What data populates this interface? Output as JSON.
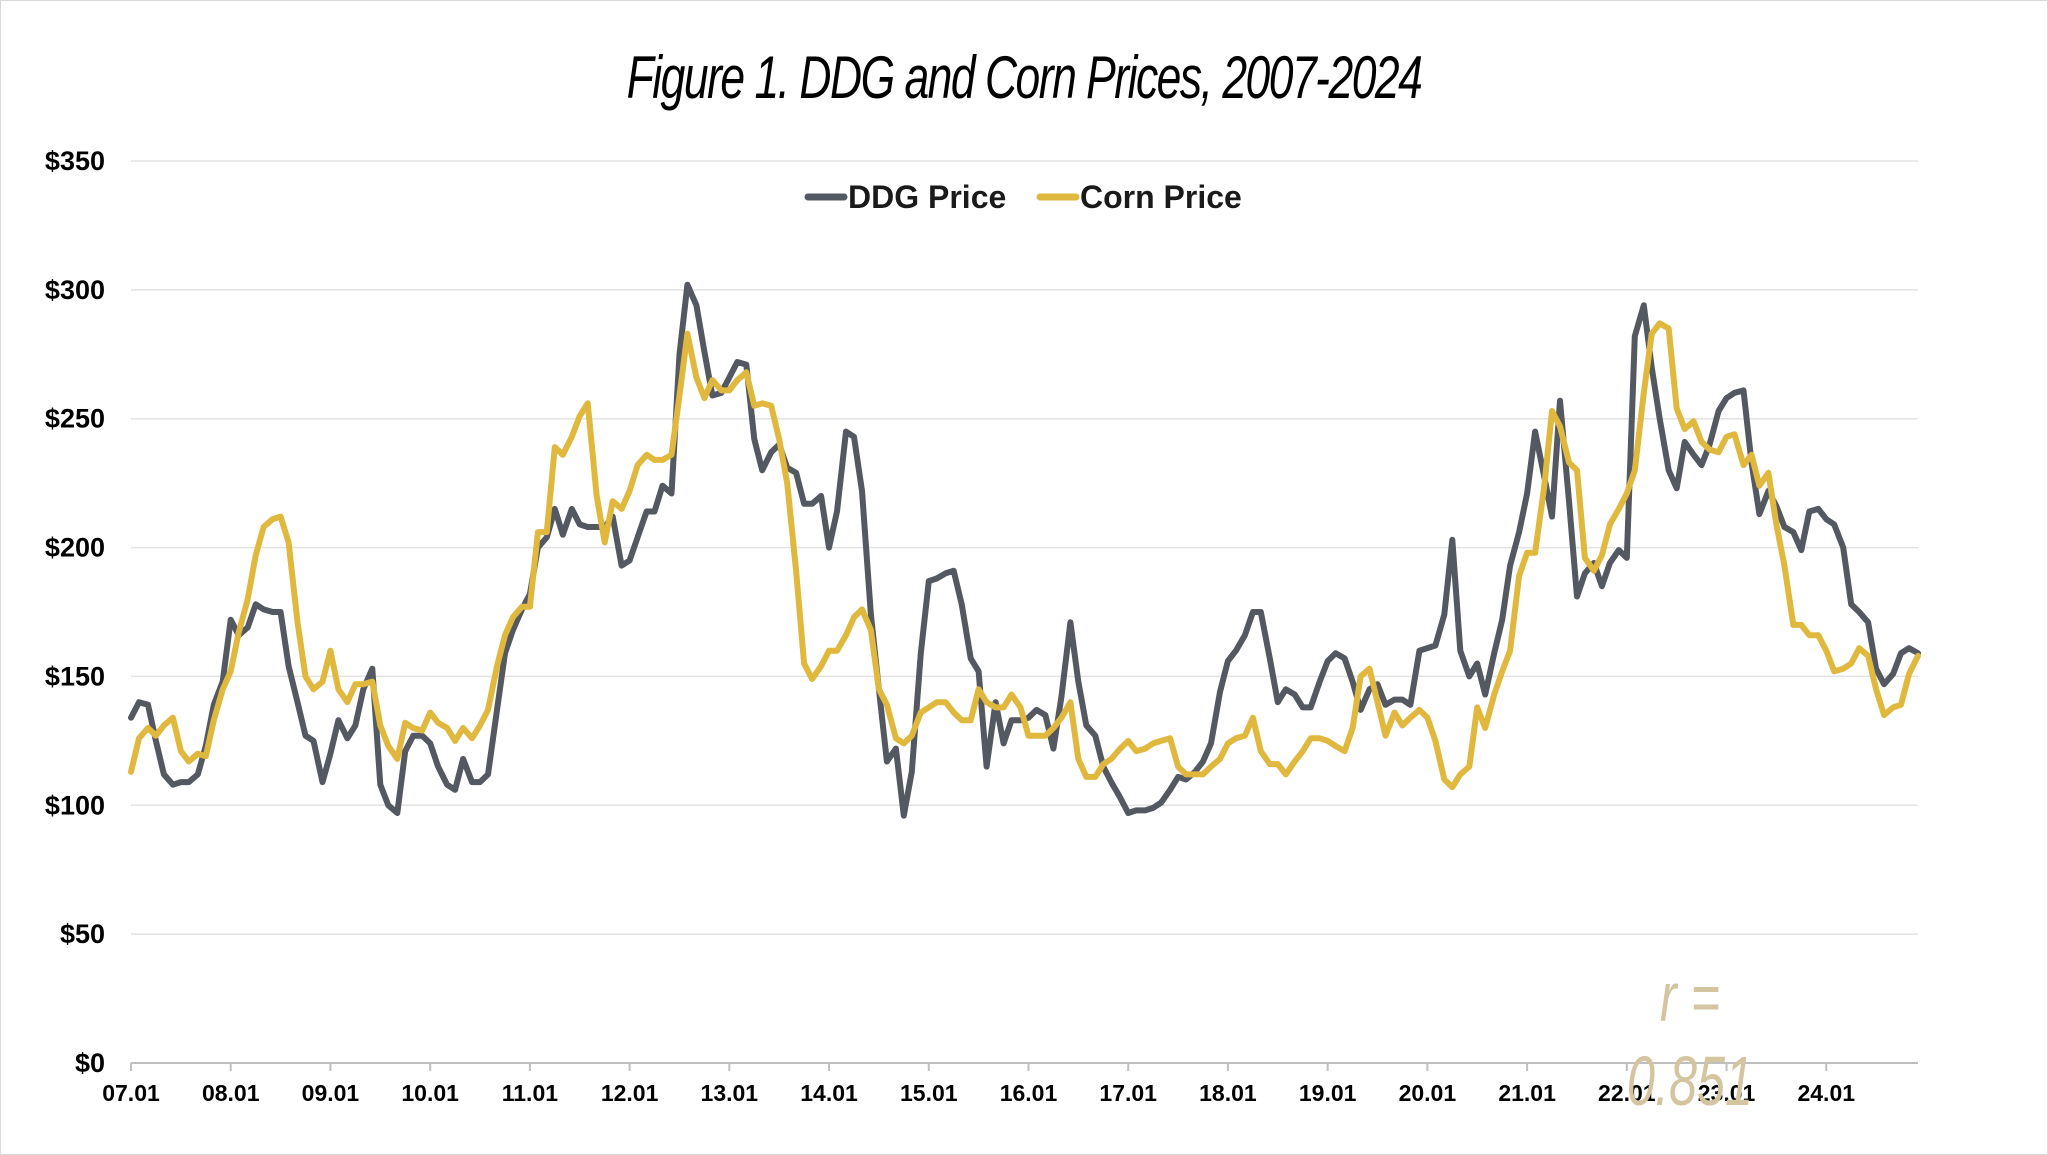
{
  "title": "Figure 1. DDG and Corn Prices, 2007-2024",
  "annotation": "r = 0.851",
  "colors": {
    "ddg": "#545860",
    "corn": "#e0b83e",
    "grid": "#e3e3e3",
    "annotation": "#d4c4a0"
  },
  "chart_data": {
    "type": "line",
    "title": "Figure 1. DDG and Corn Prices, 2007-2024",
    "xlabel": "",
    "ylabel": "",
    "ylim": [
      0,
      350
    ],
    "yticks": [
      "$0",
      "$50",
      "$100",
      "$150",
      "$200",
      "$250",
      "$300",
      "$350"
    ],
    "xticks": [
      "07.01",
      "08.01",
      "09.01",
      "10.01",
      "11.01",
      "12.01",
      "13.01",
      "14.01",
      "15.01",
      "16.01",
      "17.01",
      "18.01",
      "19.01",
      "20.01",
      "21.01",
      "22.01",
      "23.01",
      "24.01"
    ],
    "grid": "horizontal",
    "legend": "top-center",
    "series": [
      {
        "name": "DDG Price",
        "x": [
          0.0,
          0.08,
          0.17,
          0.25,
          0.33,
          0.42,
          0.5,
          0.58,
          0.67,
          0.75,
          0.83,
          0.92,
          1.0,
          1.08,
          1.17,
          1.25,
          1.33,
          1.42,
          1.5,
          1.58,
          1.67,
          1.75,
          1.83,
          1.92,
          2.0,
          2.08,
          2.17,
          2.25,
          2.33,
          2.42,
          2.5,
          2.58,
          2.67,
          2.75,
          2.83,
          2.92,
          3.0,
          3.08,
          3.17,
          3.25,
          3.33,
          3.42,
          3.5,
          3.58,
          3.67,
          3.75,
          3.83,
          3.92,
          4.0,
          4.08,
          4.17,
          4.25,
          4.33,
          4.42,
          4.5,
          4.58,
          4.67,
          4.75,
          4.83,
          4.92,
          5.0,
          5.08,
          5.17,
          5.25,
          5.33,
          5.42,
          5.5,
          5.58,
          5.67,
          5.75,
          5.83,
          5.92,
          6.0,
          6.08,
          6.17,
          6.25,
          6.33,
          6.42,
          6.5,
          6.58,
          6.67,
          6.75,
          6.83,
          6.92,
          7.0,
          7.08,
          7.17,
          7.25,
          7.33,
          7.42,
          7.5,
          7.58,
          7.67,
          7.75,
          7.83,
          7.92,
          8.0,
          8.08,
          8.17,
          8.25,
          8.33,
          8.42,
          8.5,
          8.58,
          8.67,
          8.75,
          8.83,
          8.92,
          9.0,
          9.08,
          9.17,
          9.25,
          9.33,
          9.42,
          9.5,
          9.58,
          9.67,
          9.75,
          9.83,
          9.92,
          10.0,
          10.08,
          10.17,
          10.25,
          10.33,
          10.42,
          10.5,
          10.58,
          10.67,
          10.75,
          10.83,
          10.92,
          11.0,
          11.08,
          11.17,
          11.25,
          11.33,
          11.42,
          11.5,
          11.58,
          11.67,
          11.75,
          11.83,
          11.92,
          12.0,
          12.08,
          12.17,
          12.25,
          12.33,
          12.42,
          12.5,
          12.58,
          12.67,
          12.75,
          12.83,
          12.92,
          13.0,
          13.08,
          13.17,
          13.25,
          13.33,
          13.42,
          13.5,
          13.58,
          13.67,
          13.75,
          13.83,
          13.92,
          14.0,
          14.08,
          14.17,
          14.25,
          14.33,
          14.42,
          14.5,
          14.58,
          14.67,
          14.75,
          14.83,
          14.92,
          15.0,
          15.08,
          15.17,
          15.25,
          15.33,
          15.42,
          15.5,
          15.58,
          15.67,
          15.75,
          15.83,
          15.92,
          16.0,
          16.08,
          16.17,
          16.25,
          16.33,
          16.42,
          16.5,
          16.58,
          16.67,
          16.75,
          16.83,
          16.92,
          17.0,
          17.08,
          17.17,
          17.25,
          17.33,
          17.42,
          17.5,
          17.58,
          17.67,
          17.75,
          17.83,
          17.92
        ],
        "values": [
          134,
          140,
          139,
          125,
          112,
          108,
          109,
          109,
          112,
          123,
          139,
          148,
          172,
          166,
          169,
          178,
          176,
          175,
          175,
          154,
          140,
          127,
          125,
          109,
          120,
          133,
          126,
          131,
          145,
          153,
          108,
          100,
          97,
          121,
          127,
          127,
          124,
          115,
          108,
          106,
          118,
          109,
          109,
          112,
          137,
          159,
          168,
          176,
          182,
          200,
          204,
          215,
          205,
          215,
          209,
          208,
          208,
          208,
          212,
          193,
          195,
          204,
          214,
          214,
          224,
          221,
          275,
          302,
          294,
          276,
          259,
          260,
          266,
          272,
          271,
          242,
          230,
          237,
          240,
          231,
          229,
          217,
          217,
          220,
          200,
          214,
          245,
          243,
          222,
          174,
          145,
          117,
          122,
          96,
          113,
          159,
          187,
          188,
          190,
          191,
          178,
          157,
          152,
          115,
          140,
          124,
          133,
          133,
          134,
          137,
          135,
          122,
          142,
          171,
          148,
          131,
          127,
          115,
          109,
          103,
          97,
          98,
          98,
          99,
          101,
          106,
          111,
          110,
          113,
          117,
          124,
          144,
          156,
          160,
          166,
          175,
          175,
          157,
          140,
          145,
          143,
          138,
          138,
          148,
          156,
          159,
          157,
          148,
          137,
          145,
          147,
          139,
          141,
          141,
          139,
          160,
          161,
          162,
          174,
          203,
          160,
          150,
          155,
          143,
          159,
          172,
          193,
          206,
          221,
          245,
          228,
          212,
          257,
          218,
          181,
          190,
          194,
          185,
          194,
          199,
          196,
          282,
          294,
          270,
          250,
          230,
          223,
          241,
          236,
          232,
          240,
          253,
          258,
          260,
          261,
          233,
          213,
          222,
          216,
          208,
          206,
          199,
          214,
          215,
          211,
          209,
          200,
          178,
          175,
          171,
          153,
          147,
          151,
          159,
          161,
          159
        ]
      },
      {
        "name": "Corn Price",
        "x": [
          0.0,
          0.08,
          0.17,
          0.25,
          0.33,
          0.42,
          0.5,
          0.58,
          0.67,
          0.75,
          0.83,
          0.92,
          1.0,
          1.08,
          1.17,
          1.25,
          1.33,
          1.42,
          1.5,
          1.58,
          1.67,
          1.75,
          1.83,
          1.92,
          2.0,
          2.08,
          2.17,
          2.25,
          2.33,
          2.42,
          2.5,
          2.58,
          2.67,
          2.75,
          2.83,
          2.92,
          3.0,
          3.08,
          3.17,
          3.25,
          3.33,
          3.42,
          3.5,
          3.58,
          3.67,
          3.75,
          3.83,
          3.92,
          4.0,
          4.08,
          4.17,
          4.25,
          4.33,
          4.42,
          4.5,
          4.58,
          4.67,
          4.75,
          4.83,
          4.92,
          5.0,
          5.08,
          5.17,
          5.25,
          5.33,
          5.42,
          5.5,
          5.58,
          5.67,
          5.75,
          5.83,
          5.92,
          6.0,
          6.08,
          6.17,
          6.25,
          6.33,
          6.42,
          6.5,
          6.58,
          6.67,
          6.75,
          6.83,
          6.92,
          7.0,
          7.08,
          7.17,
          7.25,
          7.33,
          7.42,
          7.5,
          7.58,
          7.67,
          7.75,
          7.83,
          7.92,
          8.0,
          8.08,
          8.17,
          8.25,
          8.33,
          8.42,
          8.5,
          8.58,
          8.67,
          8.75,
          8.83,
          8.92,
          9.0,
          9.08,
          9.17,
          9.25,
          9.33,
          9.42,
          9.5,
          9.58,
          9.67,
          9.75,
          9.83,
          9.92,
          10.0,
          10.08,
          10.17,
          10.25,
          10.33,
          10.42,
          10.5,
          10.58,
          10.67,
          10.75,
          10.83,
          10.92,
          11.0,
          11.08,
          11.17,
          11.25,
          11.33,
          11.42,
          11.5,
          11.58,
          11.67,
          11.75,
          11.83,
          11.92,
          12.0,
          12.08,
          12.17,
          12.25,
          12.33,
          12.42,
          12.5,
          12.58,
          12.67,
          12.75,
          12.83,
          12.92,
          13.0,
          13.08,
          13.17,
          13.25,
          13.33,
          13.42,
          13.5,
          13.58,
          13.67,
          13.75,
          13.83,
          13.92,
          14.0,
          14.08,
          14.17,
          14.25,
          14.33,
          14.42,
          14.5,
          14.58,
          14.67,
          14.75,
          14.83,
          14.92,
          15.0,
          15.08,
          15.17,
          15.25,
          15.33,
          15.42,
          15.5,
          15.58,
          15.67,
          15.75,
          15.83,
          15.92,
          16.0,
          16.08,
          16.17,
          16.25,
          16.33,
          16.42,
          16.5,
          16.58,
          16.67,
          16.75,
          16.83,
          16.92,
          17.0,
          17.08,
          17.17,
          17.25,
          17.33,
          17.42,
          17.5,
          17.58,
          17.67,
          17.75,
          17.83,
          17.92
        ],
        "values": [
          113,
          126,
          130,
          127,
          131,
          134,
          121,
          117,
          120,
          119,
          133,
          145,
          152,
          167,
          180,
          197,
          208,
          211,
          212,
          202,
          171,
          150,
          145,
          148,
          160,
          145,
          140,
          147,
          147,
          148,
          131,
          123,
          118,
          132,
          130,
          129,
          136,
          132,
          130,
          125,
          130,
          126,
          131,
          137,
          154,
          166,
          173,
          177,
          177,
          206,
          206,
          239,
          236,
          243,
          251,
          256,
          220,
          202,
          218,
          215,
          222,
          232,
          236,
          234,
          234,
          236,
          259,
          283,
          266,
          258,
          265,
          261,
          261,
          265,
          268,
          255,
          256,
          255,
          242,
          225,
          191,
          155,
          149,
          154,
          160,
          160,
          166,
          173,
          176,
          168,
          145,
          139,
          126,
          124,
          127,
          136,
          138,
          140,
          140,
          136,
          133,
          133,
          145,
          140,
          138,
          138,
          143,
          138,
          127,
          127,
          127,
          130,
          134,
          140,
          118,
          111,
          111,
          116,
          118,
          122,
          125,
          121,
          122,
          124,
          125,
          126,
          115,
          112,
          112,
          112,
          115,
          118,
          124,
          126,
          127,
          134,
          121,
          116,
          116,
          112,
          117,
          121,
          126,
          126,
          125,
          123,
          121,
          130,
          150,
          153,
          140,
          127,
          136,
          131,
          134,
          137,
          134,
          125,
          110,
          107,
          112,
          115,
          138,
          130,
          143,
          152,
          160,
          189,
          198,
          198,
          223,
          253,
          247,
          233,
          230,
          196,
          191,
          197,
          209,
          215,
          221,
          230,
          260,
          283,
          287,
          285,
          254,
          246,
          249,
          241,
          238,
          237,
          243,
          244,
          232,
          236,
          224,
          229,
          209,
          193,
          170,
          170,
          166,
          166,
          160,
          152,
          153,
          155,
          161,
          158,
          145,
          135,
          138,
          139,
          151,
          158
        ]
      }
    ]
  }
}
